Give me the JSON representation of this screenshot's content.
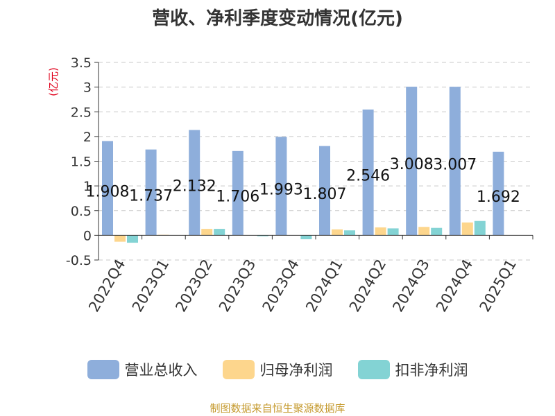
{
  "title": "营收、净利季度变动情况(亿元)",
  "source": "制图数据来自恒生聚源数据库",
  "colors": {
    "revenue": "#8eaedb",
    "net_profit": "#fdd68d",
    "deducted_net_profit": "#83d3d4"
  },
  "chart_data": {
    "type": "bar",
    "ylabel": "(亿元)",
    "ylim": [
      -0.5,
      3.5
    ],
    "yticks": [
      "-0.5",
      "0",
      "0.5",
      "1",
      "1.5",
      "2",
      "2.5",
      "3",
      "3.5"
    ],
    "grid": true,
    "legend_position": "bottom",
    "categories": [
      "2022Q4",
      "2023Q1",
      "2023Q2",
      "2023Q3",
      "2023Q4",
      "2024Q1",
      "2024Q2",
      "2024Q3",
      "2024Q4",
      "2025Q1"
    ],
    "series": [
      {
        "name": "营业总收入",
        "values": [
          1.908,
          1.737,
          2.132,
          1.706,
          1.993,
          1.807,
          2.546,
          3.008,
          3.007,
          1.692
        ],
        "labels": [
          "1.908",
          "1.737",
          "2.132",
          "1.706",
          "1.993",
          "1.807",
          "2.546",
          "3.008",
          "3.007",
          "1.692"
        ]
      },
      {
        "name": "归母净利润",
        "values": [
          -0.13,
          0.01,
          0.13,
          0.0,
          0.0,
          0.12,
          0.16,
          0.17,
          0.26,
          0.0
        ]
      },
      {
        "name": "扣非净利润",
        "values": [
          -0.15,
          0.0,
          0.13,
          -0.02,
          -0.08,
          0.1,
          0.14,
          0.15,
          0.29,
          0.0
        ]
      }
    ]
  }
}
